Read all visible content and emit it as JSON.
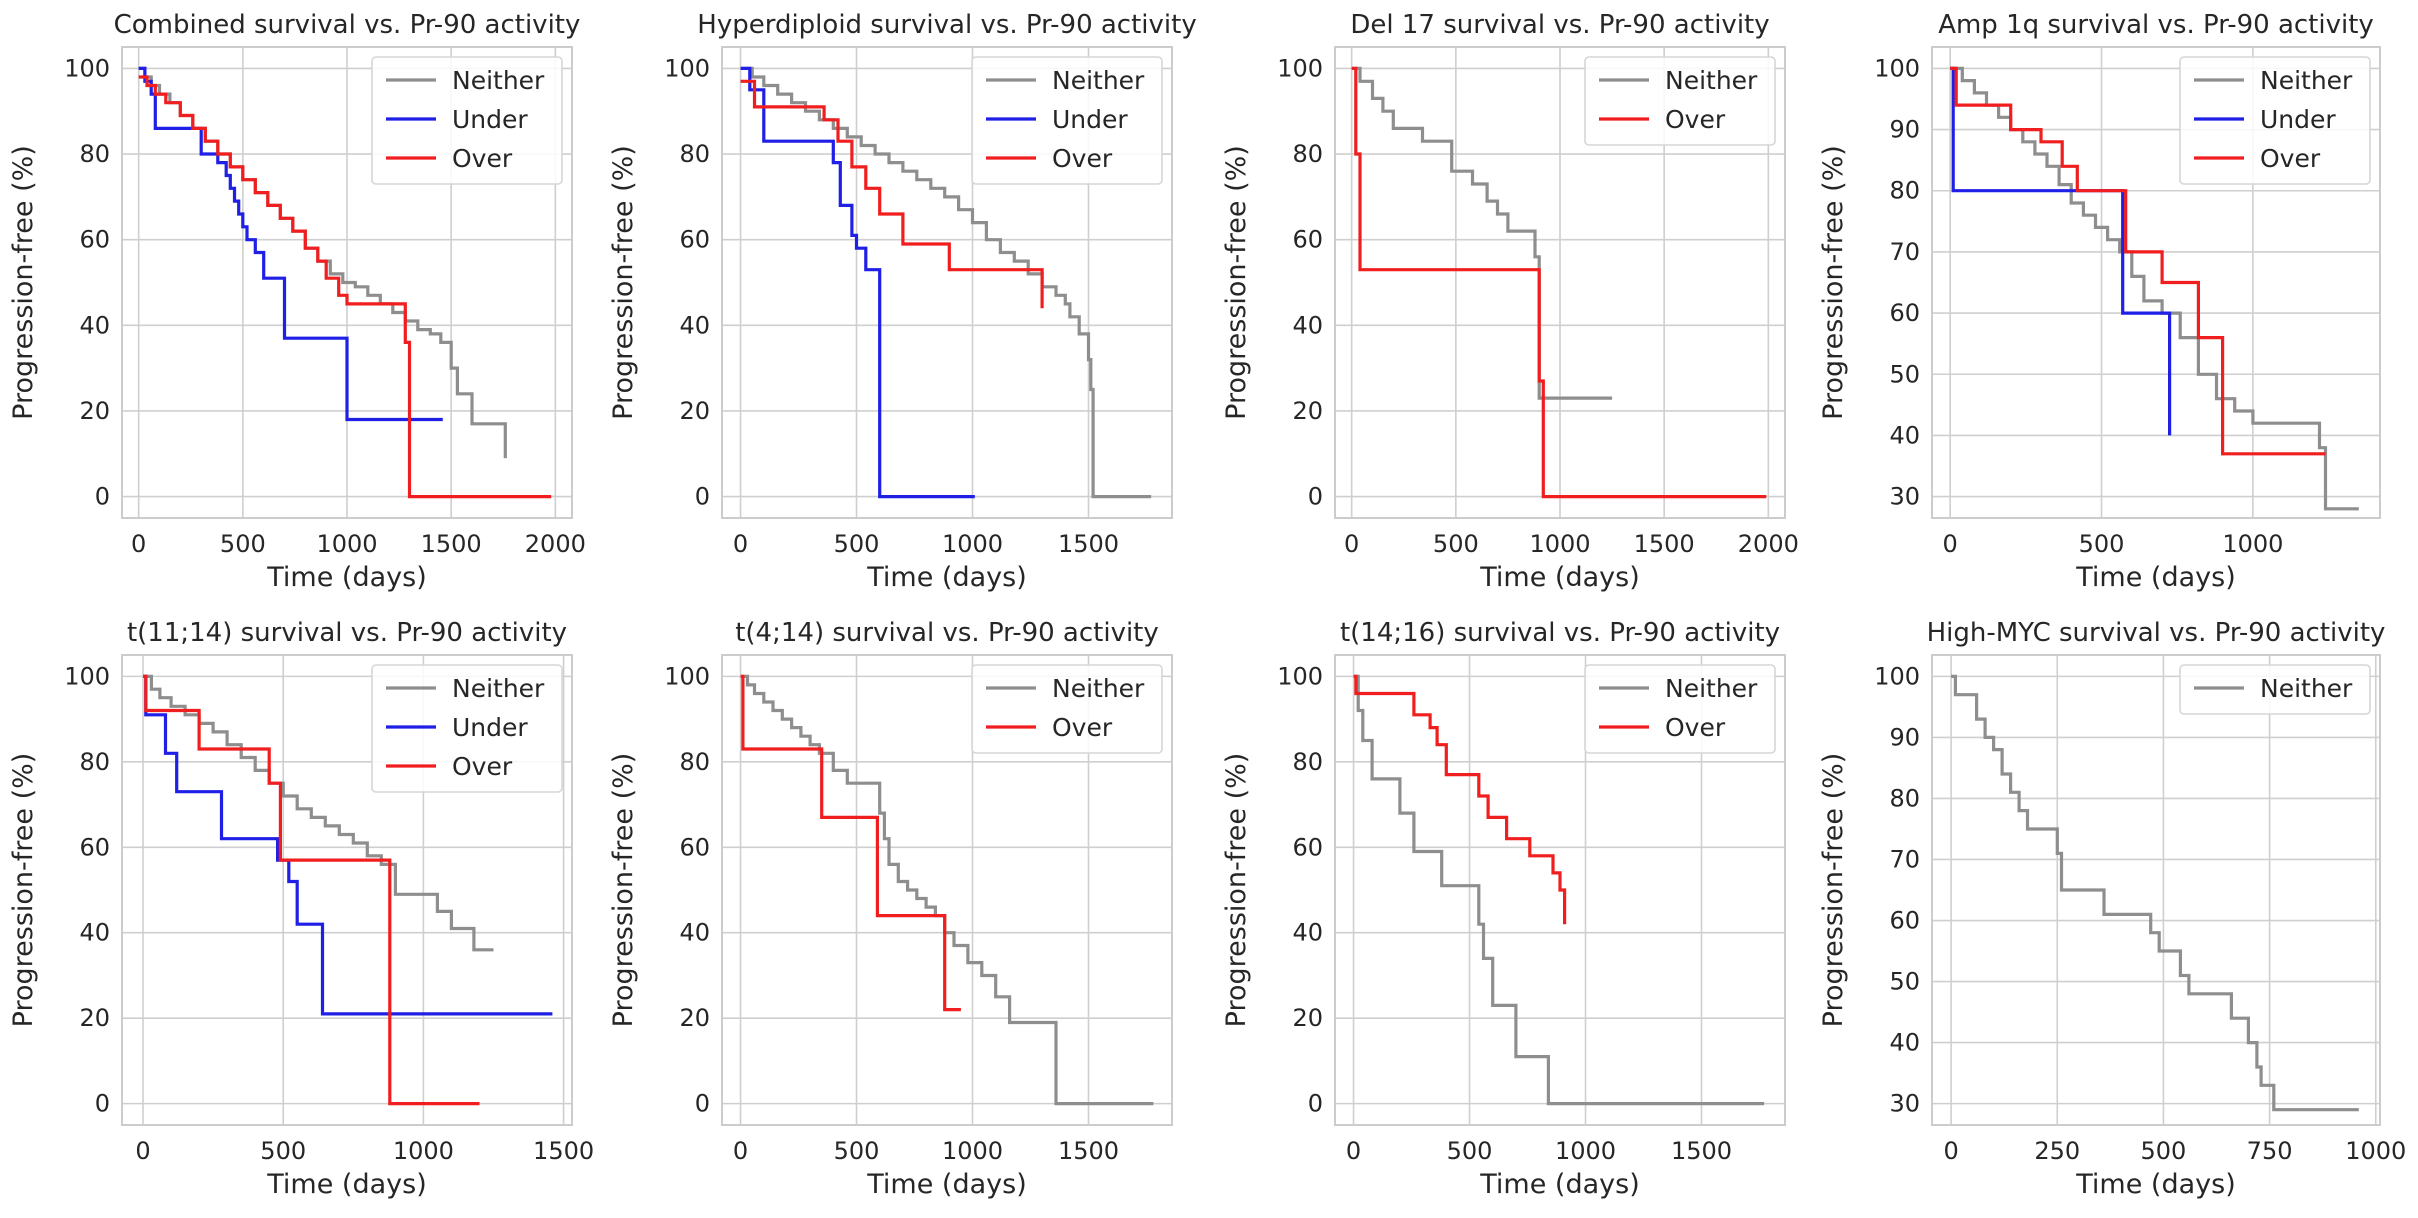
{
  "figure": {
    "kind": "Kaplan-Meier progression-free survival grid",
    "rows": 2,
    "cols": 4
  },
  "colors": {
    "Neither": "#8e8e8e",
    "Under": "#1f1fe6",
    "Over": "#f01e1e",
    "grid": "#cfcfcf",
    "frame": "#cccccc",
    "text": "#262626"
  },
  "chart_data": [
    {
      "type": "line",
      "step": true,
      "title": "Combined survival vs. Pr-90 activity",
      "xlabel": "Time (days)",
      "ylabel": "Progression-free (%)",
      "xlim": [
        -80,
        2080
      ],
      "ylim": [
        -5,
        105
      ],
      "xticks": [
        0,
        500,
        1000,
        1500,
        2000
      ],
      "yticks": [
        0,
        20,
        40,
        60,
        80,
        100
      ],
      "legend": [
        "Neither",
        "Under",
        "Over"
      ],
      "legend_loc": "top-right",
      "series": [
        {
          "name": "Neither",
          "x": [
            0,
            30,
            60,
            100,
            150,
            200,
            260,
            320,
            380,
            440,
            500,
            560,
            620,
            680,
            740,
            800,
            860,
            920,
            980,
            1040,
            1100,
            1160,
            1220,
            1280,
            1340,
            1400,
            1450,
            1500,
            1530,
            1600,
            1750,
            1760
          ],
          "y": [
            100,
            98,
            96,
            94,
            92,
            89,
            86,
            83,
            80,
            77,
            74,
            71,
            68,
            65,
            62,
            58,
            55,
            52,
            50,
            49,
            47,
            45,
            43,
            41,
            39,
            38,
            36,
            30,
            24,
            17,
            17,
            9
          ]
        },
        {
          "name": "Under",
          "x": [
            0,
            30,
            60,
            80,
            300,
            380,
            420,
            440,
            460,
            480,
            500,
            520,
            560,
            600,
            700,
            1000,
            1460
          ],
          "y": [
            100,
            97,
            94,
            86,
            80,
            78,
            75,
            72,
            69,
            66,
            63,
            60,
            57,
            51,
            37,
            18,
            18
          ]
        },
        {
          "name": "Over",
          "x": [
            0,
            40,
            80,
            130,
            200,
            260,
            320,
            380,
            440,
            500,
            560,
            620,
            680,
            740,
            800,
            860,
            900,
            960,
            1000,
            1280,
            1300,
            1980
          ],
          "y": [
            98,
            96,
            94,
            92,
            89,
            86,
            83,
            80,
            77,
            74,
            71,
            68,
            65,
            62,
            58,
            55,
            51,
            47,
            45,
            36,
            0,
            0
          ]
        }
      ]
    },
    {
      "type": "line",
      "step": true,
      "title": "Hyperdiploid survival vs. Pr-90 activity",
      "xlabel": "Time (days)",
      "ylabel": "Progression-free (%)",
      "xlim": [
        -80,
        1860
      ],
      "ylim": [
        -5,
        105
      ],
      "xticks": [
        0,
        500,
        1000,
        1500
      ],
      "yticks": [
        0,
        20,
        40,
        60,
        80,
        100
      ],
      "legend": [
        "Neither",
        "Under",
        "Over"
      ],
      "legend_loc": "top-right",
      "series": [
        {
          "name": "Neither",
          "x": [
            0,
            50,
            100,
            160,
            220,
            280,
            340,
            400,
            460,
            520,
            580,
            640,
            700,
            760,
            820,
            880,
            940,
            1000,
            1060,
            1120,
            1180,
            1240,
            1300,
            1360,
            1400,
            1420,
            1460,
            1500,
            1510,
            1520,
            1770
          ],
          "y": [
            100,
            98,
            96,
            94,
            92,
            90,
            88,
            86,
            84,
            82,
            80,
            78,
            76,
            74,
            72,
            70,
            67,
            64,
            60,
            57,
            55,
            52,
            49,
            47,
            45,
            42,
            38,
            32,
            25,
            0,
            0
          ]
        },
        {
          "name": "Under",
          "x": [
            0,
            40,
            100,
            400,
            430,
            480,
            500,
            540,
            600,
            1010
          ],
          "y": [
            100,
            95,
            83,
            78,
            68,
            61,
            58,
            53,
            0,
            0
          ]
        },
        {
          "name": "Over",
          "x": [
            0,
            60,
            140,
            360,
            420,
            480,
            540,
            600,
            700,
            900,
            1300
          ],
          "y": [
            97,
            91,
            91,
            88,
            83,
            77,
            72,
            66,
            59,
            53,
            44
          ]
        }
      ]
    },
    {
      "type": "line",
      "step": true,
      "title": "Del 17 survival vs. Pr-90 activity",
      "xlabel": "Time (days)",
      "ylabel": "Progression-free (%)",
      "xlim": [
        -80,
        2080
      ],
      "ylim": [
        -5,
        105
      ],
      "xticks": [
        0,
        500,
        1000,
        1500,
        2000
      ],
      "yticks": [
        0,
        20,
        40,
        60,
        80,
        100
      ],
      "legend": [
        "Neither",
        "Over"
      ],
      "legend_loc": "top-right",
      "series": [
        {
          "name": "Neither",
          "x": [
            0,
            40,
            100,
            150,
            200,
            340,
            480,
            580,
            650,
            700,
            750,
            880,
            900,
            1250
          ],
          "y": [
            100,
            97,
            93,
            90,
            86,
            83,
            76,
            73,
            69,
            66,
            62,
            56,
            23,
            23
          ]
        },
        {
          "name": "Over",
          "x": [
            0,
            20,
            40,
            870,
            900,
            920,
            1990
          ],
          "y": [
            100,
            80,
            53,
            53,
            27,
            0,
            0
          ]
        }
      ]
    },
    {
      "type": "line",
      "step": true,
      "title": "Amp 1q survival vs. Pr-90 activity",
      "xlabel": "Time (days)",
      "ylabel": "Progression-free (%)",
      "xlim": [
        -60,
        1420
      ],
      "ylim": [
        26.5,
        103.5
      ],
      "xticks": [
        0,
        500,
        1000
      ],
      "yticks": [
        30,
        40,
        50,
        60,
        70,
        80,
        90,
        100
      ],
      "legend": [
        "Neither",
        "Under",
        "Over"
      ],
      "legend_loc": "top-right",
      "series": [
        {
          "name": "Neither",
          "x": [
            0,
            40,
            80,
            120,
            160,
            200,
            240,
            280,
            320,
            360,
            400,
            440,
            480,
            520,
            560,
            600,
            640,
            700,
            760,
            820,
            880,
            940,
            1000,
            1220,
            1240,
            1350
          ],
          "y": [
            100,
            98,
            96,
            94,
            92,
            90,
            88,
            86,
            84,
            81,
            78,
            76,
            74,
            72,
            70,
            66,
            62,
            60,
            56,
            50,
            46,
            44,
            42,
            38,
            28,
            28
          ]
        },
        {
          "name": "Under",
          "x": [
            0,
            10,
            560,
            570,
            720,
            725
          ],
          "y": [
            100,
            80,
            80,
            60,
            60,
            40
          ]
        },
        {
          "name": "Over",
          "x": [
            0,
            20,
            60,
            200,
            300,
            370,
            420,
            460,
            580,
            700,
            820,
            900,
            1240
          ],
          "y": [
            100,
            94,
            94,
            90,
            88,
            84,
            80,
            80,
            70,
            65,
            56,
            37,
            37
          ]
        }
      ]
    },
    {
      "type": "line",
      "step": true,
      "title": "t(11;14) survival vs. Pr-90 activity",
      "xlabel": "Time (days)",
      "ylabel": "Progression-free (%)",
      "xlim": [
        -75,
        1530
      ],
      "ylim": [
        -5,
        105
      ],
      "xticks": [
        0,
        500,
        1000,
        1500
      ],
      "yticks": [
        0,
        20,
        40,
        60,
        80,
        100
      ],
      "legend": [
        "Neither",
        "Under",
        "Over"
      ],
      "legend_loc": "top-right",
      "series": [
        {
          "name": "Neither",
          "x": [
            0,
            30,
            60,
            100,
            150,
            200,
            250,
            300,
            350,
            400,
            450,
            500,
            550,
            600,
            650,
            700,
            750,
            800,
            850,
            900,
            1000,
            1050,
            1100,
            1150,
            1180,
            1250
          ],
          "y": [
            100,
            97,
            95,
            93,
            91,
            89,
            87,
            84,
            81,
            78,
            75,
            72,
            69,
            67,
            65,
            63,
            61,
            58,
            56,
            49,
            49,
            45,
            41,
            41,
            36,
            36
          ]
        },
        {
          "name": "Under",
          "x": [
            0,
            10,
            80,
            120,
            280,
            480,
            520,
            550,
            640,
            1460
          ],
          "y": [
            100,
            91,
            82,
            73,
            62,
            57,
            52,
            42,
            21,
            21
          ]
        },
        {
          "name": "Over",
          "x": [
            0,
            10,
            200,
            360,
            450,
            490,
            870,
            880,
            1200
          ],
          "y": [
            100,
            92,
            83,
            83,
            75,
            57,
            57,
            0,
            0
          ]
        }
      ]
    },
    {
      "type": "line",
      "step": true,
      "title": "t(4;14) survival vs. Pr-90 activity",
      "xlabel": "Time (days)",
      "ylabel": "Progression-free (%)",
      "xlim": [
        -80,
        1860
      ],
      "ylim": [
        -5,
        105
      ],
      "xticks": [
        0,
        500,
        1000,
        1500
      ],
      "yticks": [
        0,
        20,
        40,
        60,
        80,
        100
      ],
      "legend": [
        "Neither",
        "Over"
      ],
      "legend_loc": "top-right",
      "series": [
        {
          "name": "Neither",
          "x": [
            0,
            30,
            60,
            100,
            140,
            180,
            220,
            260,
            300,
            340,
            400,
            460,
            560,
            600,
            620,
            640,
            680,
            720,
            760,
            800,
            840,
            880,
            920,
            980,
            1040,
            1100,
            1160,
            1360,
            1780
          ],
          "y": [
            100,
            98,
            96,
            94,
            92,
            90,
            88,
            86,
            84,
            82,
            78,
            75,
            75,
            68,
            62,
            56,
            52,
            50,
            48,
            46,
            44,
            40,
            37,
            33,
            30,
            25,
            19,
            0,
            0
          ]
        },
        {
          "name": "Over",
          "x": [
            0,
            10,
            350,
            590,
            880,
            950
          ],
          "y": [
            100,
            83,
            67,
            44,
            22,
            22
          ]
        }
      ]
    },
    {
      "type": "line",
      "step": true,
      "title": "t(14;16) survival vs. Pr-90 activity",
      "xlabel": "Time (days)",
      "ylabel": "Progression-free (%)",
      "xlim": [
        -80,
        1860
      ],
      "ylim": [
        -5,
        105
      ],
      "xticks": [
        0,
        500,
        1000,
        1500
      ],
      "yticks": [
        0,
        20,
        40,
        60,
        80,
        100
      ],
      "legend": [
        "Neither",
        "Over"
      ],
      "legend_loc": "top-right",
      "series": [
        {
          "name": "Neither",
          "x": [
            0,
            20,
            40,
            80,
            200,
            260,
            380,
            540,
            560,
            600,
            700,
            840,
            1770
          ],
          "y": [
            100,
            92,
            85,
            76,
            68,
            59,
            51,
            42,
            34,
            23,
            11,
            0,
            0
          ]
        },
        {
          "name": "Over",
          "x": [
            0,
            10,
            260,
            330,
            360,
            400,
            540,
            580,
            660,
            760,
            860,
            890,
            910
          ],
          "y": [
            100,
            96,
            91,
            88,
            84,
            77,
            72,
            67,
            62,
            58,
            54,
            50,
            42
          ]
        }
      ]
    },
    {
      "type": "line",
      "step": true,
      "title": "High-MYC survival vs. Pr-90 activity",
      "xlabel": "Time (days)",
      "ylabel": "Progression-free (%)",
      "xlim": [
        -45,
        1010
      ],
      "ylim": [
        26.5,
        103.5
      ],
      "xticks": [
        0,
        250,
        500,
        750,
        1000
      ],
      "yticks": [
        30,
        40,
        50,
        60,
        70,
        80,
        90,
        100
      ],
      "legend": [
        "Neither"
      ],
      "legend_loc": "top-right",
      "series": [
        {
          "name": "Neither",
          "x": [
            0,
            10,
            60,
            80,
            100,
            120,
            140,
            160,
            180,
            240,
            250,
            260,
            360,
            470,
            490,
            540,
            560,
            660,
            700,
            720,
            730,
            760,
            960
          ],
          "y": [
            100,
            97,
            93,
            90,
            88,
            84,
            81,
            78,
            75,
            75,
            71,
            65,
            61,
            58,
            55,
            51,
            48,
            44,
            40,
            36,
            33,
            29,
            29
          ]
        }
      ]
    }
  ]
}
